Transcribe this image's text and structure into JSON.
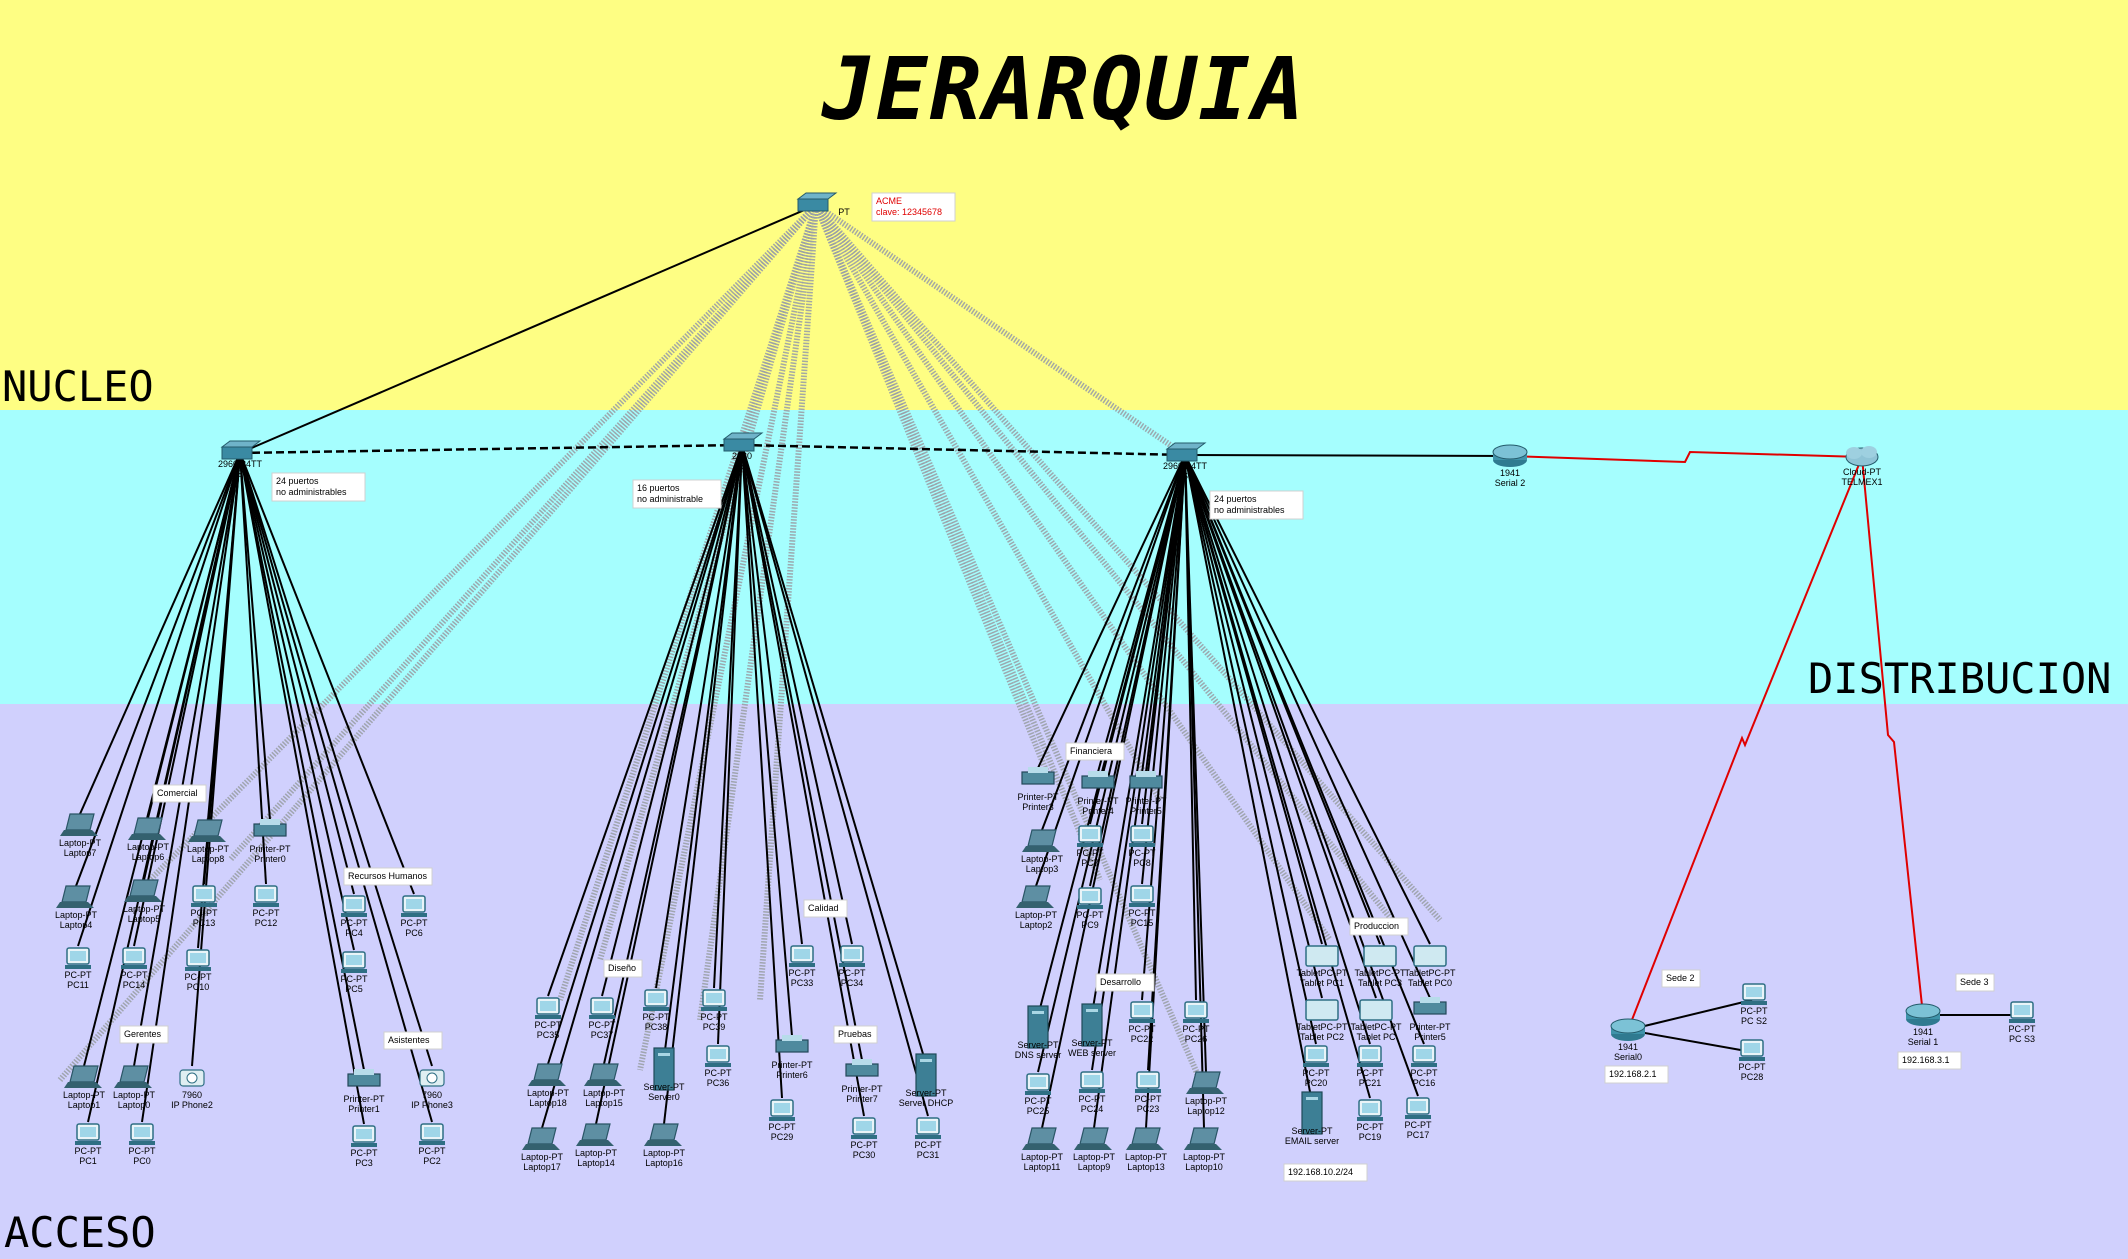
{
  "title": "JERARQUIA",
  "layers": {
    "core": "NUCLEO",
    "distribution": "DISTRIBUCION",
    "access": "ACCESO"
  },
  "colors": {
    "core_band": "#fefe83",
    "distribution_band": "#a5fefe",
    "access_band": "#d0d0fd",
    "serial_link": "#e00000",
    "link": "#000000"
  },
  "core_device": {
    "label": "PT",
    "note_line1": "ACME",
    "note_line2": "clave: 12345678"
  },
  "switches": {
    "left": {
      "label_line1": "2960-24TT",
      "label_line2": "S",
      "note_line1": "24 puertos",
      "note_line2": "no administrables"
    },
    "center": {
      "label_line1": "2960",
      "label_line2": "S",
      "note_line1": "16 puertos",
      "note_line2": "no administrable"
    },
    "right": {
      "label_line1": "2960-24TT",
      "label_line2": "S",
      "note_line1": "24 puertos",
      "note_line2": "no administrables"
    }
  },
  "wan": {
    "router": {
      "model": "1941",
      "label": "Serial 2"
    },
    "cloud": {
      "model": "Cloud-PT",
      "label": "TELMEX1"
    },
    "sede2": {
      "note": "Sede 2",
      "router_model": "1941",
      "router_label": "Serial0",
      "ip": "192.168.2.1",
      "pcs": [
        {
          "model": "PC-PT",
          "name": "PC S2"
        },
        {
          "model": "PC-PT",
          "name": "PC28"
        }
      ]
    },
    "sede3": {
      "note": "Sede 3",
      "router_model": "1941",
      "router_label": "Serial 1",
      "ip": "192.168.3.1",
      "pcs": [
        {
          "model": "PC-PT",
          "name": "PC S3"
        }
      ]
    }
  },
  "groups": {
    "comercial": "Comercial",
    "recursos_humanos": "Recursos Humanos",
    "gerentes": "Gerentes",
    "asistentes": "Asistentes",
    "diseno": "Diseño",
    "calidad": "Calidad",
    "pruebas": "Pruebas",
    "financiera": "Financiera",
    "desarrollo": "Desarrollo",
    "produccion": "Produccion"
  },
  "devices_left": [
    {
      "model": "Laptop-PT",
      "name": "Laptop7"
    },
    {
      "model": "Laptop-PT",
      "name": "Laptop6"
    },
    {
      "model": "Laptop-PT",
      "name": "Laptop8"
    },
    {
      "model": "Printer-PT",
      "name": "Printer0"
    },
    {
      "model": "Laptop-PT",
      "name": "Laptop4"
    },
    {
      "model": "Laptop-PT",
      "name": "Laptop5"
    },
    {
      "model": "PC-PT",
      "name": "PC13"
    },
    {
      "model": "PC-PT",
      "name": "PC12"
    },
    {
      "model": "PC-PT",
      "name": "PC4"
    },
    {
      "model": "PC-PT",
      "name": "PC6"
    },
    {
      "model": "PC-PT",
      "name": "PC11"
    },
    {
      "model": "PC-PT",
      "name": "PC14"
    },
    {
      "model": "PC-PT",
      "name": "PC10"
    },
    {
      "model": "PC-PT",
      "name": "PC5"
    },
    {
      "model": "Laptop-PT",
      "name": "Laptop1"
    },
    {
      "model": "Laptop-PT",
      "name": "Laptop0"
    },
    {
      "model": "7960",
      "name": "IP Phone2"
    },
    {
      "model": "Printer-PT",
      "name": "Printer1"
    },
    {
      "model": "7960",
      "name": "IP Phone3"
    },
    {
      "model": "PC-PT",
      "name": "PC1"
    },
    {
      "model": "PC-PT",
      "name": "PC0"
    },
    {
      "model": "PC-PT",
      "name": "PC3"
    },
    {
      "model": "PC-PT",
      "name": "PC2"
    }
  ],
  "devices_center": [
    {
      "model": "PC-PT",
      "name": "PC33"
    },
    {
      "model": "PC-PT",
      "name": "PC34"
    },
    {
      "model": "PC-PT",
      "name": "PC35"
    },
    {
      "model": "PC-PT",
      "name": "PC37"
    },
    {
      "model": "PC-PT",
      "name": "PC38"
    },
    {
      "model": "PC-PT",
      "name": "PC39"
    },
    {
      "model": "PC-PT",
      "name": "PC36"
    },
    {
      "model": "Printer-PT",
      "name": "Printer6"
    },
    {
      "model": "Printer-PT",
      "name": "Printer7"
    },
    {
      "model": "Laptop-PT",
      "name": "Laptop18"
    },
    {
      "model": "Laptop-PT",
      "name": "Laptop15"
    },
    {
      "model": "Server-PT",
      "name": "Server0"
    },
    {
      "model": "Server-PT",
      "name": "Server DHCP"
    },
    {
      "model": "PC-PT",
      "name": "PC29"
    },
    {
      "model": "PC-PT",
      "name": "PC30"
    },
    {
      "model": "PC-PT",
      "name": "PC31"
    },
    {
      "model": "Laptop-PT",
      "name": "Laptop17"
    },
    {
      "model": "Laptop-PT",
      "name": "Laptop14"
    },
    {
      "model": "Laptop-PT",
      "name": "Laptop16"
    }
  ],
  "devices_right": [
    {
      "model": "Printer-PT",
      "name": "Printer3"
    },
    {
      "model": "Printer-PT",
      "name": "Printer4"
    },
    {
      "model": "Printer-PT",
      "name": "Printer5"
    },
    {
      "model": "Laptop-PT",
      "name": "Laptop3"
    },
    {
      "model": "PC-PT",
      "name": "PC7"
    },
    {
      "model": "PC-PT",
      "name": "PC8"
    },
    {
      "model": "Laptop-PT",
      "name": "Laptop2"
    },
    {
      "model": "PC-PT",
      "name": "PC9"
    },
    {
      "model": "PC-PT",
      "name": "PC15"
    },
    {
      "model": "Server-PT",
      "name": "DNS server"
    },
    {
      "model": "Server-PT",
      "name": "WEB server"
    },
    {
      "model": "PC-PT",
      "name": "PC22"
    },
    {
      "model": "PC-PT",
      "name": "PC26"
    },
    {
      "model": "PC-PT",
      "name": "PC25"
    },
    {
      "model": "PC-PT",
      "name": "PC24"
    },
    {
      "model": "PC-PT",
      "name": "PC23"
    },
    {
      "model": "Laptop-PT",
      "name": "Laptop12"
    },
    {
      "model": "Laptop-PT",
      "name": "Laptop11"
    },
    {
      "model": "Laptop-PT",
      "name": "Laptop9"
    },
    {
      "model": "Laptop-PT",
      "name": "Laptop13"
    },
    {
      "model": "Laptop-PT",
      "name": "Laptop10"
    },
    {
      "model": "TabletPC-PT",
      "name": "Tablet PC1"
    },
    {
      "model": "TabletPC-PT",
      "name": "Tablet PC3"
    },
    {
      "model": "TabletPC-PT",
      "name": "Tablet PC0"
    },
    {
      "model": "TabletPC-PT",
      "name": "Tablet PC2"
    },
    {
      "model": "TabletPC-PT",
      "name": "Tablet PC"
    },
    {
      "model": "Printer-PT",
      "name": "Printer5"
    },
    {
      "model": "PC-PT",
      "name": "PC20"
    },
    {
      "model": "PC-PT",
      "name": "PC21"
    },
    {
      "model": "PC-PT",
      "name": "PC16"
    },
    {
      "model": "PC-PT",
      "name": "PC19"
    },
    {
      "model": "PC-PT",
      "name": "PC17"
    },
    {
      "model": "Server-PT",
      "name": "EMAIL server"
    }
  ],
  "email_server_ip": "192.168.10.2/24"
}
